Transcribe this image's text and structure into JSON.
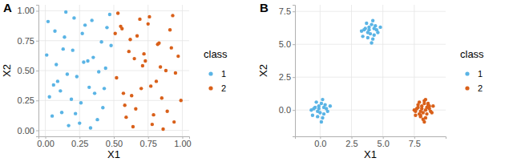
{
  "chart_data": [
    {
      "type": "scatter",
      "title": "A",
      "x_label": "X1",
      "y_label": "X2",
      "legend_title": "class",
      "legend": "right",
      "grid": true,
      "xlim": [
        -0.05,
        1.05
      ],
      "ylim": [
        -0.05,
        1.05
      ],
      "xticks": [
        {
          "value": 0,
          "label": "0.00"
        },
        {
          "value": 0.25,
          "label": "0.25"
        },
        {
          "value": 0.5,
          "label": "0.50"
        },
        {
          "value": 0.75,
          "label": "0.75"
        },
        {
          "value": 1,
          "label": "1.00"
        }
      ],
      "yticks": [
        {
          "value": 0,
          "label": "0.00"
        },
        {
          "value": 0.25,
          "label": "0.25"
        },
        {
          "value": 0.5,
          "label": "0.50"
        },
        {
          "value": 0.75,
          "label": "0.75"
        },
        {
          "value": 1,
          "label": "1.00"
        }
      ],
      "series": [
        {
          "name": "1",
          "color": "#5AB4E5",
          "x": [
            0.02,
            0.05,
            0.08,
            0.11,
            0.14,
            0.17,
            0.2,
            0.23,
            0.26,
            0.29,
            0.32,
            0.35,
            0.38,
            0.41,
            0.44,
            0.47,
            0.03,
            0.07,
            0.12,
            0.16,
            0.21,
            0.25,
            0.31,
            0.36,
            0.42,
            0.48,
            0.01,
            0.09,
            0.15,
            0.19,
            0.27,
            0.33,
            0.39,
            0.45,
            0.06,
            0.13,
            0.22,
            0.28,
            0.34,
            0.43
          ],
          "values": [
            0.91,
            0.12,
            0.55,
            0.33,
            0.78,
            0.04,
            0.67,
            0.45,
            0.23,
            0.88,
            0.36,
            0.61,
            0.09,
            0.74,
            0.52,
            0.97,
            0.28,
            0.83,
            0.15,
            0.47,
            0.94,
            0.06,
            0.58,
            0.31,
            0.19,
            0.71,
            0.63,
            0.41,
            0.99,
            0.26,
            0.81,
            0.02,
            0.49,
            0.86,
            0.38,
            0.68,
            0.14,
            0.57,
            0.92,
            0.35
          ]
        },
        {
          "name": "2",
          "color": "#D9601A",
          "x": [
            0.52,
            0.55,
            0.58,
            0.61,
            0.64,
            0.67,
            0.7,
            0.73,
            0.76,
            0.79,
            0.82,
            0.85,
            0.88,
            0.91,
            0.94,
            0.97,
            0.53,
            0.57,
            0.62,
            0.66,
            0.71,
            0.75,
            0.81,
            0.86,
            0.92,
            0.99,
            0.51,
            0.59,
            0.65,
            0.69,
            0.77,
            0.83,
            0.89,
            0.95,
            0.56,
            0.63,
            0.72,
            0.78,
            0.84,
            0.93
          ],
          "values": [
            0.44,
            0.87,
            0.21,
            0.66,
            0.03,
            0.79,
            0.35,
            0.58,
            0.95,
            0.13,
            0.72,
            0.27,
            0.5,
            0.84,
            0.07,
            0.62,
            0.98,
            0.31,
            0.76,
            0.18,
            0.54,
            0.89,
            0.41,
            0.01,
            0.69,
            0.25,
            0.81,
            0.11,
            0.6,
            0.93,
            0.37,
            0.73,
            0.16,
            0.48,
            0.85,
            0.29,
            0.64,
            0.05,
            0.53,
            0.96
          ]
        }
      ]
    },
    {
      "type": "scatter",
      "title": "B",
      "x_label": "X1",
      "y_label": "X2",
      "legend_title": "class",
      "legend": "right",
      "grid": true,
      "xlim": [
        -2,
        10
      ],
      "ylim": [
        -2,
        8
      ],
      "xticks": [
        {
          "value": 0,
          "label": "0.0"
        },
        {
          "value": 2.5,
          "label": "2.5"
        },
        {
          "value": 5,
          "label": "5.0"
        },
        {
          "value": 7.5,
          "label": "7.5"
        }
      ],
      "yticks": [
        {
          "value": 0,
          "label": "0.0"
        },
        {
          "value": 2.5,
          "label": "2.5"
        },
        {
          "value": 5,
          "label": "5.0"
        },
        {
          "value": 7.5,
          "label": "7.5"
        }
      ],
      "series": [
        {
          "name": "1",
          "color": "#5AB4E5",
          "x": [
            -0.4,
            0.3,
            0.1,
            -0.2,
            0.5,
            -0.6,
            0.2,
            -0.1,
            0.4,
            -0.3,
            0.0,
            0.6,
            -0.5,
            0.2,
            -0.2,
            0.3,
            -0.7,
            0.1,
            0.8,
            -0.1,
            3.6,
            4.3,
            4.1,
            3.8,
            4.5,
            3.4,
            4.2,
            3.9,
            4.4,
            3.7,
            4.0,
            4.6,
            3.5,
            4.2,
            3.8,
            4.3,
            3.3,
            4.1,
            4.8,
            3.9
          ],
          "values": [
            0.2,
            -0.3,
            0.5,
            -0.1,
            0.1,
            -0.4,
            -0.6,
            0.3,
            0.4,
            0.6,
            -0.2,
            -0.1,
            0.1,
            0.8,
            -0.5,
            0.2,
            0.0,
            -0.9,
            0.3,
            0.1,
            6.2,
            5.7,
            6.5,
            5.9,
            6.1,
            5.6,
            5.4,
            6.3,
            6.4,
            6.6,
            5.8,
            5.9,
            6.1,
            6.8,
            5.5,
            6.2,
            6.0,
            5.1,
            6.3,
            6.1
          ]
        },
        {
          "name": "2",
          "color": "#D9601A",
          "x": [
            7.8,
            8.5,
            8.3,
            8.0,
            8.7,
            7.6,
            8.4,
            8.1,
            8.6,
            7.9,
            8.2,
            8.8,
            7.7,
            8.4,
            8.0,
            8.5,
            7.5,
            8.3,
            9.0,
            8.1,
            7.9,
            8.6,
            8.2,
            8.9,
            7.8,
            8.4,
            8.0,
            8.7,
            8.3,
            7.6
          ],
          "values": [
            0.2,
            -0.3,
            0.5,
            -0.1,
            0.1,
            -0.4,
            -0.6,
            0.3,
            0.4,
            0.6,
            -0.2,
            -0.1,
            0.1,
            0.8,
            -0.5,
            0.2,
            0.0,
            -0.9,
            0.3,
            0.1,
            -0.3,
            0.5,
            -0.7,
            -0.2,
            0.4,
            0.0,
            -0.4,
            0.3,
            0.7,
            -0.1
          ]
        }
      ]
    }
  ]
}
